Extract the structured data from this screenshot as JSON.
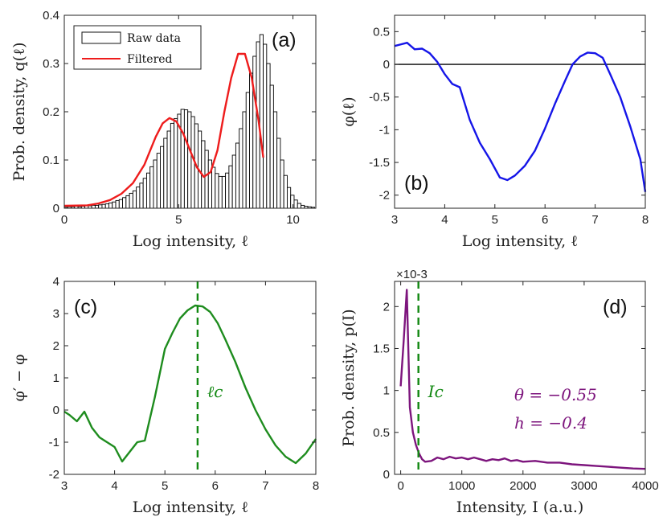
{
  "chart_data": [
    {
      "id": "a",
      "type": "bar",
      "panel_label": "(a)",
      "xlabel": "Log intensity, ℓ",
      "ylabel": "Prob. density, q(ℓ)",
      "xlim": [
        0,
        11
      ],
      "ylim": [
        0,
        0.4
      ],
      "xticks": [
        0,
        5,
        10
      ],
      "yticks": [
        0,
        0.1,
        0.2,
        0.3,
        0.4
      ],
      "ytick_labels": [
        "0",
        "0.1",
        "0.2",
        "0.3",
        "0.4"
      ],
      "legend": {
        "position": "top-left",
        "entries": [
          "Raw data",
          "Filtered"
        ]
      },
      "series": [
        {
          "name": "Raw data",
          "kind": "histogram",
          "bin_start": 0.0,
          "bin_width": 0.15,
          "color": "#000000",
          "values": [
            0.002,
            0.003,
            0.003,
            0.004,
            0.003,
            0.004,
            0.005,
            0.005,
            0.006,
            0.006,
            0.007,
            0.008,
            0.009,
            0.011,
            0.013,
            0.016,
            0.018,
            0.022,
            0.026,
            0.031,
            0.036,
            0.044,
            0.052,
            0.062,
            0.073,
            0.086,
            0.1,
            0.114,
            0.128,
            0.145,
            0.16,
            0.176,
            0.186,
            0.195,
            0.205,
            0.204,
            0.2,
            0.19,
            0.175,
            0.16,
            0.14,
            0.12,
            0.1,
            0.085,
            0.072,
            0.066,
            0.066,
            0.073,
            0.088,
            0.11,
            0.135,
            0.165,
            0.2,
            0.24,
            0.28,
            0.315,
            0.345,
            0.36,
            0.34,
            0.3,
            0.255,
            0.2,
            0.145,
            0.1,
            0.068,
            0.043,
            0.027,
            0.017,
            0.01,
            0.006,
            0.004,
            0.003,
            0.002
          ]
        },
        {
          "name": "Filtered",
          "kind": "line",
          "color": "#ee1c1c",
          "x": [
            0.0,
            1.0,
            1.5,
            2.0,
            2.5,
            3.0,
            3.5,
            4.0,
            4.3,
            4.6,
            4.9,
            5.2,
            5.5,
            5.8,
            6.1,
            6.4,
            6.7,
            7.0,
            7.3,
            7.6,
            7.9,
            8.2,
            8.5,
            8.7
          ],
          "y": [
            0.005,
            0.006,
            0.01,
            0.017,
            0.03,
            0.052,
            0.09,
            0.148,
            0.176,
            0.187,
            0.18,
            0.155,
            0.12,
            0.085,
            0.065,
            0.075,
            0.12,
            0.2,
            0.27,
            0.32,
            0.32,
            0.27,
            0.18,
            0.105
          ]
        }
      ]
    },
    {
      "id": "b",
      "type": "line",
      "panel_label": "(b)",
      "xlabel": "Log intensity, ℓ",
      "ylabel": "φ(ℓ)",
      "xlim": [
        3,
        8
      ],
      "ylim": [
        -2.2,
        0.75
      ],
      "xticks": [
        3,
        4,
        5,
        6,
        7,
        8
      ],
      "yticks": [
        0.5,
        0,
        -0.5,
        -1,
        -1.5,
        -2
      ],
      "ytick_labels": [
        "0.5",
        "0",
        "-0.5",
        "-1",
        "-1.5",
        "-2"
      ],
      "hline": 0,
      "series": [
        {
          "color": "#1515e8",
          "x": [
            3.0,
            3.1,
            3.25,
            3.4,
            3.55,
            3.7,
            3.85,
            4.0,
            4.15,
            4.3,
            4.5,
            4.7,
            4.9,
            5.1,
            5.25,
            5.4,
            5.6,
            5.8,
            6.0,
            6.2,
            6.4,
            6.55,
            6.7,
            6.85,
            7.0,
            7.15,
            7.3,
            7.5,
            7.7,
            7.9,
            8.0
          ],
          "y": [
            0.28,
            0.3,
            0.33,
            0.23,
            0.24,
            0.17,
            0.04,
            -0.15,
            -0.3,
            -0.35,
            -0.85,
            -1.2,
            -1.45,
            -1.73,
            -1.77,
            -1.7,
            -1.55,
            -1.32,
            -0.98,
            -0.6,
            -0.25,
            0.0,
            0.12,
            0.18,
            0.17,
            0.1,
            -0.15,
            -0.5,
            -0.95,
            -1.45,
            -1.95
          ]
        }
      ]
    },
    {
      "id": "c",
      "type": "line",
      "panel_label": "(c)",
      "xlabel": "Log intensity, ℓ",
      "ylabel": "φ′ − φ",
      "xlim": [
        3,
        8
      ],
      "ylim": [
        -2,
        4
      ],
      "xticks": [
        3,
        4,
        5,
        6,
        7,
        8
      ],
      "yticks": [
        4,
        3,
        2,
        1,
        0,
        -1,
        -2
      ],
      "ytick_labels": [
        "4",
        "3",
        "2",
        "1",
        "0",
        "-1",
        "-2"
      ],
      "vline": {
        "x": 5.65,
        "label": "ℓc",
        "color": "#118811"
      },
      "series": [
        {
          "color": "#1e8c1e",
          "x": [
            3.0,
            3.1,
            3.25,
            3.4,
            3.55,
            3.7,
            3.85,
            4.0,
            4.15,
            4.3,
            4.45,
            4.6,
            4.8,
            5.0,
            5.15,
            5.3,
            5.45,
            5.6,
            5.75,
            5.9,
            6.05,
            6.2,
            6.4,
            6.6,
            6.8,
            7.0,
            7.2,
            7.4,
            7.6,
            7.8,
            8.0
          ],
          "y": [
            -0.05,
            -0.15,
            -0.35,
            -0.05,
            -0.55,
            -0.85,
            -1.0,
            -1.15,
            -1.6,
            -1.3,
            -1.0,
            -0.95,
            0.4,
            1.9,
            2.4,
            2.85,
            3.1,
            3.25,
            3.22,
            3.05,
            2.7,
            2.2,
            1.5,
            0.7,
            0.0,
            -0.6,
            -1.1,
            -1.45,
            -1.65,
            -1.35,
            -0.9
          ]
        }
      ]
    },
    {
      "id": "d",
      "type": "line",
      "panel_label": "(d)",
      "xlabel": "Intensity, I (a.u.)",
      "ylabel": "Prob. density, p(I)",
      "y_multiplier": "×10-3",
      "xlim": [
        -100,
        4000
      ],
      "ylim": [
        0,
        2.3
      ],
      "xticks": [
        0,
        1000,
        2000,
        3000,
        4000
      ],
      "yticks": [
        0,
        0.5,
        1,
        1.5,
        2
      ],
      "ytick_labels": [
        "0",
        "0.5",
        "1",
        "1.5",
        "2"
      ],
      "vline": {
        "x": 290,
        "label": "Ic",
        "color": "#118811"
      },
      "annotations": [
        "θ = −0.55",
        "h = −0.4"
      ],
      "series": [
        {
          "color": "#7d157d",
          "x": [
            0,
            50,
            100,
            150,
            200,
            250,
            300,
            350,
            400,
            500,
            600,
            700,
            800,
            900,
            1000,
            1100,
            1200,
            1300,
            1400,
            1500,
            1600,
            1700,
            1800,
            1900,
            2000,
            2200,
            2400,
            2600,
            2800,
            3000,
            3200,
            3400,
            3600,
            3800,
            4000
          ],
          "y": [
            1.05,
            1.6,
            2.2,
            0.8,
            0.5,
            0.35,
            0.25,
            0.18,
            0.15,
            0.16,
            0.2,
            0.18,
            0.21,
            0.19,
            0.2,
            0.18,
            0.2,
            0.18,
            0.16,
            0.18,
            0.17,
            0.19,
            0.16,
            0.17,
            0.15,
            0.16,
            0.14,
            0.14,
            0.12,
            0.11,
            0.1,
            0.09,
            0.08,
            0.07,
            0.065
          ]
        }
      ]
    }
  ]
}
